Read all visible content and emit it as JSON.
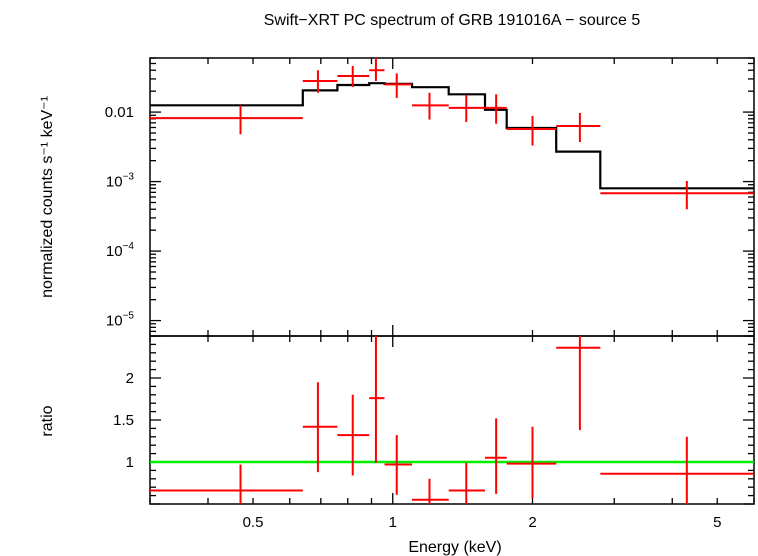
{
  "chart_data": [
    {
      "type": "line",
      "panel": "spectrum",
      "title": "Swift−XRT PC spectrum of GRB 191016A − source 5",
      "xlabel": "Energy (keV)",
      "ylabel": "normalized counts s⁻¹ keV⁻¹",
      "xscale": "log",
      "yscale": "log",
      "xlim": [
        0.3,
        6.0
      ],
      "ylim": [
        6e-06,
        0.06
      ],
      "y_ticks": [
        {
          "value": 1e-05,
          "base": "10",
          "exp": "−5"
        },
        {
          "value": 0.0001,
          "base": "10",
          "exp": "−4"
        },
        {
          "value": 0.001,
          "base": "10",
          "exp": "−3"
        },
        {
          "value": 0.01,
          "base": "0.01",
          "exp": ""
        }
      ],
      "series": [
        {
          "kind": "data",
          "color": "#ff0000",
          "points": [
            {
              "x": 0.47,
              "xlo": 0.3,
              "xhi": 0.64,
              "y": 0.0082,
              "ylo": 0.0048,
              "yhi": 0.0125
            },
            {
              "x": 0.69,
              "xlo": 0.64,
              "xhi": 0.76,
              "y": 0.028,
              "ylo": 0.019,
              "yhi": 0.04
            },
            {
              "x": 0.82,
              "xlo": 0.76,
              "xhi": 0.89,
              "y": 0.033,
              "ylo": 0.023,
              "yhi": 0.046
            },
            {
              "x": 0.92,
              "xlo": 0.89,
              "xhi": 0.96,
              "y": 0.04,
              "ylo": 0.028,
              "yhi": 0.06
            },
            {
              "x": 1.02,
              "xlo": 0.96,
              "xhi": 1.1,
              "y": 0.025,
              "ylo": 0.016,
              "yhi": 0.036
            },
            {
              "x": 1.2,
              "xlo": 1.1,
              "xhi": 1.32,
              "y": 0.0125,
              "ylo": 0.0078,
              "yhi": 0.019
            },
            {
              "x": 1.44,
              "xlo": 1.32,
              "xhi": 1.58,
              "y": 0.0115,
              "ylo": 0.0072,
              "yhi": 0.0175
            },
            {
              "x": 1.67,
              "xlo": 1.58,
              "xhi": 1.76,
              "y": 0.0115,
              "ylo": 0.0068,
              "yhi": 0.018
            },
            {
              "x": 2.0,
              "xlo": 1.76,
              "xhi": 2.25,
              "y": 0.0057,
              "ylo": 0.0033,
              "yhi": 0.0088
            },
            {
              "x": 2.53,
              "xlo": 2.25,
              "xhi": 2.8,
              "y": 0.0063,
              "ylo": 0.0037,
              "yhi": 0.0097
            },
            {
              "x": 4.3,
              "xlo": 2.8,
              "xhi": 6.0,
              "y": 0.00068,
              "ylo": 0.0004,
              "yhi": 0.00102
            }
          ]
        },
        {
          "kind": "model",
          "color": "#000000",
          "steps": [
            {
              "xlo": 0.3,
              "xhi": 0.64,
              "y": 0.0125
            },
            {
              "xlo": 0.64,
              "xhi": 0.76,
              "y": 0.0205
            },
            {
              "xlo": 0.76,
              "xhi": 0.89,
              "y": 0.0245
            },
            {
              "xlo": 0.89,
              "xhi": 0.96,
              "y": 0.026
            },
            {
              "xlo": 0.96,
              "xhi": 1.1,
              "y": 0.0255
            },
            {
              "xlo": 1.1,
              "xhi": 1.32,
              "y": 0.0228
            },
            {
              "xlo": 1.32,
              "xhi": 1.58,
              "y": 0.018
            },
            {
              "xlo": 1.58,
              "xhi": 1.76,
              "y": 0.0108
            },
            {
              "xlo": 1.76,
              "xhi": 2.25,
              "y": 0.0059
            },
            {
              "xlo": 2.25,
              "xhi": 2.8,
              "y": 0.0027
            },
            {
              "xlo": 2.8,
              "xhi": 6.0,
              "y": 0.0008
            }
          ]
        }
      ]
    },
    {
      "type": "line",
      "panel": "ratio",
      "xlabel": "Energy (keV)",
      "ylabel": "ratio",
      "xscale": "log",
      "xlim": [
        0.3,
        6.0
      ],
      "ylim": [
        0.5,
        2.5
      ],
      "x_ticks": [
        {
          "value": 0.5,
          "label": "0.5"
        },
        {
          "value": 1,
          "label": "1"
        },
        {
          "value": 2,
          "label": "2"
        },
        {
          "value": 5,
          "label": "5"
        }
      ],
      "y_ticks": [
        {
          "value": 1,
          "label": "1"
        },
        {
          "value": 1.5,
          "label": "1.5"
        },
        {
          "value": 2,
          "label": "2"
        }
      ],
      "reference_line": {
        "y": 1,
        "color": "#00ee00"
      },
      "series": [
        {
          "kind": "data",
          "color": "#ff0000",
          "points": [
            {
              "x": 0.47,
              "xlo": 0.3,
              "xhi": 0.64,
              "y": 0.66,
              "ylo": 0.45,
              "yhi": 0.97
            },
            {
              "x": 0.69,
              "xlo": 0.64,
              "xhi": 0.76,
              "y": 1.42,
              "ylo": 0.88,
              "yhi": 1.95
            },
            {
              "x": 0.82,
              "xlo": 0.76,
              "xhi": 0.89,
              "y": 1.32,
              "ylo": 0.84,
              "yhi": 1.8
            },
            {
              "x": 0.92,
              "xlo": 0.89,
              "xhi": 0.96,
              "y": 1.76,
              "ylo": 0.99,
              "yhi": 2.5
            },
            {
              "x": 1.02,
              "xlo": 0.96,
              "xhi": 1.1,
              "y": 0.97,
              "ylo": 0.61,
              "yhi": 1.32
            },
            {
              "x": 1.2,
              "xlo": 1.1,
              "xhi": 1.32,
              "y": 0.55,
              "ylo": 0.45,
              "yhi": 0.8
            },
            {
              "x": 1.44,
              "xlo": 1.32,
              "xhi": 1.58,
              "y": 0.66,
              "ylo": 0.45,
              "yhi": 0.99
            },
            {
              "x": 1.67,
              "xlo": 1.58,
              "xhi": 1.76,
              "y": 1.05,
              "ylo": 0.62,
              "yhi": 1.52
            },
            {
              "x": 2.0,
              "xlo": 1.76,
              "xhi": 2.25,
              "y": 0.98,
              "ylo": 0.57,
              "yhi": 1.42
            },
            {
              "x": 2.53,
              "xlo": 2.25,
              "xhi": 2.8,
              "y": 2.36,
              "ylo": 1.38,
              "yhi": 2.5
            },
            {
              "x": 4.3,
              "xlo": 2.8,
              "xhi": 6.0,
              "y": 0.86,
              "ylo": 0.45,
              "yhi": 1.3
            }
          ]
        }
      ]
    }
  ]
}
